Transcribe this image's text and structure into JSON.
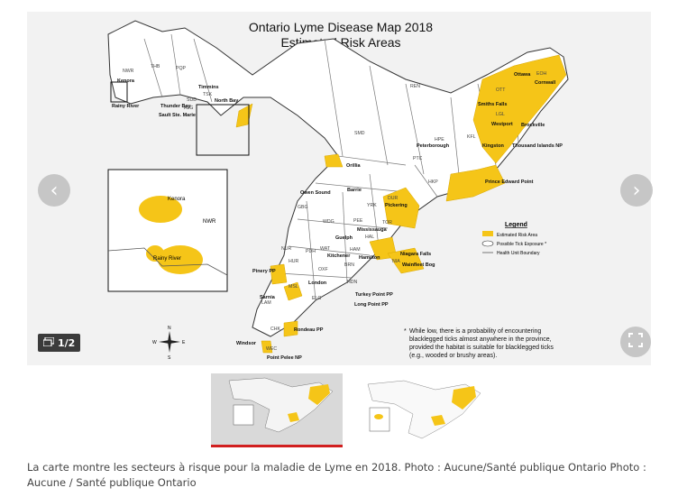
{
  "map": {
    "title_line1": "Ontario Lyme Disease Map 2018",
    "title_line2": "Estimated Risk Areas",
    "legend": {
      "heading": "Legend",
      "items": [
        "Estimated Risk Area",
        "Possible Tick Exposure *",
        "Health Unit Boundary"
      ]
    },
    "footnote": [
      "While low, there is a probability of encountering",
      "blacklegged ticks almost anywhere in the province,",
      "provided the habitat is suitable for blacklegged ticks",
      "(e.g., wooded or brushy areas)."
    ],
    "inset_labels": {
      "kenora": "Kenora",
      "rainy_river": "Rainy River",
      "nwr": "NWR"
    },
    "health_units": [
      "NWR",
      "THB",
      "PQP",
      "ALG",
      "SUD",
      "TSK",
      "REN",
      "OTT",
      "EOH",
      "LGL",
      "KFL",
      "HPE",
      "HKP",
      "PTC",
      "SMD",
      "DUR",
      "YRK",
      "TOR",
      "PEE",
      "HAL",
      "WDG",
      "WAT",
      "HAM",
      "NIA",
      "BRN",
      "HDN",
      "OXF",
      "ELG",
      "MSL",
      "LAM",
      "CHK",
      "WEC",
      "GBG",
      "NUR",
      "PDH",
      "HUR"
    ],
    "places": [
      "Kenora",
      "Rainy River",
      "Thunder Bay",
      "Timmins",
      "North Bay",
      "Sault Ste. Marie",
      "Ottawa",
      "Cornwall",
      "Smiths Falls",
      "Westport",
      "Brockville",
      "Kingston",
      "Thousand Islands NP",
      "Prince Edward Point",
      "Peterborough",
      "Orillia",
      "Barrie",
      "Owen Sound",
      "Pickering",
      "Mississauga",
      "Guelph",
      "Kitchener",
      "Hamilton",
      "Niagara Falls",
      "Wainfleet Bog",
      "Turkey Point PP",
      "Long Point PP",
      "London",
      "Pinery PP",
      "Sarnia",
      "Rondeau PP",
      "Windsor",
      "Point Pelee NP"
    ],
    "compass": {
      "n": "N",
      "s": "S",
      "e": "E",
      "w": "W"
    }
  },
  "counter": "1/2",
  "thumbnails": [
    {
      "state": "active"
    },
    {
      "state": "inactive"
    }
  ],
  "caption": "La carte montre les secteurs à risque pour la maladie de Lyme en 2018. Photo : Aucune/Santé publique Ontario Photo : Aucune / Santé publique Ontario",
  "colors": {
    "risk": "#f5c518",
    "border": "#555555",
    "accent_bar": "#d11f1f"
  }
}
